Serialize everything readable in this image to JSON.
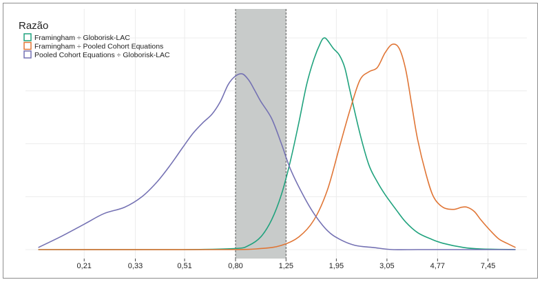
{
  "chart_data": {
    "type": "line",
    "title": "",
    "xlabel": "",
    "ylabel": "",
    "x_scale": "log",
    "x_ticks": [
      "0,21",
      "0,33",
      "0,51",
      "0,80",
      "1,25",
      "1,95",
      "3,05",
      "4,77",
      "7,45"
    ],
    "x_tick_values": [
      0.21,
      0.33,
      0.51,
      0.8,
      1.25,
      1.95,
      3.05,
      4.77,
      7.45
    ],
    "xlim": [
      0.125,
      10.5
    ],
    "ylim": [
      0,
      1.05
    ],
    "y_tick_labels_shown": false,
    "grid": true,
    "shaded_region": {
      "x_start": 0.8,
      "x_end": 1.25,
      "color": "#c8cbca"
    },
    "legend": {
      "title": "Razão",
      "position": "top-left"
    },
    "series": [
      {
        "name": "Framingham ÷ Globorisk-LAC",
        "color": "#1fa27d",
        "x": [
          0.14,
          0.5,
          0.8,
          0.9,
          1.0,
          1.1,
          1.2,
          1.3,
          1.4,
          1.5,
          1.6,
          1.7,
          1.75,
          1.8,
          1.9,
          2.0,
          2.1,
          2.2,
          2.4,
          2.6,
          2.8,
          3.0,
          3.3,
          3.6,
          4.0,
          4.5,
          5.0,
          6.0,
          7.0,
          9.5
        ],
        "y": [
          0.0,
          0.0,
          0.005,
          0.02,
          0.06,
          0.14,
          0.26,
          0.42,
          0.6,
          0.78,
          0.9,
          0.98,
          1.0,
          0.99,
          0.95,
          0.92,
          0.86,
          0.75,
          0.55,
          0.4,
          0.32,
          0.26,
          0.19,
          0.13,
          0.08,
          0.05,
          0.03,
          0.01,
          0.003,
          0.0
        ]
      },
      {
        "name": "Framingham ÷ Pooled Cohort Equations",
        "color": "#e07535",
        "x": [
          0.14,
          0.7,
          1.0,
          1.2,
          1.4,
          1.6,
          1.8,
          2.0,
          2.2,
          2.4,
          2.6,
          2.8,
          3.0,
          3.2,
          3.4,
          3.6,
          3.8,
          4.0,
          4.3,
          4.6,
          5.0,
          5.5,
          5.9,
          6.2,
          6.6,
          7.0,
          7.6,
          8.2,
          8.8,
          9.5
        ],
        "y": [
          0.0,
          0.0,
          0.005,
          0.02,
          0.06,
          0.14,
          0.28,
          0.48,
          0.66,
          0.8,
          0.84,
          0.86,
          0.93,
          0.97,
          0.95,
          0.85,
          0.68,
          0.52,
          0.36,
          0.25,
          0.2,
          0.19,
          0.2,
          0.2,
          0.18,
          0.14,
          0.09,
          0.05,
          0.03,
          0.01
        ]
      },
      {
        "name": "Pooled Cohort Equations ÷ Globorisk-LAC",
        "color": "#7471b3",
        "x": [
          0.14,
          0.17,
          0.21,
          0.25,
          0.3,
          0.35,
          0.4,
          0.45,
          0.5,
          0.55,
          0.6,
          0.65,
          0.7,
          0.75,
          0.8,
          0.85,
          0.9,
          0.95,
          1.0,
          1.1,
          1.2,
          1.3,
          1.45,
          1.6,
          1.8,
          2.0,
          2.3,
          2.7,
          3.2,
          4.0,
          5.5,
          9.5
        ],
        "y": [
          0.01,
          0.06,
          0.12,
          0.17,
          0.2,
          0.25,
          0.32,
          0.4,
          0.48,
          0.55,
          0.6,
          0.64,
          0.7,
          0.78,
          0.82,
          0.83,
          0.8,
          0.75,
          0.7,
          0.62,
          0.5,
          0.38,
          0.26,
          0.17,
          0.09,
          0.05,
          0.02,
          0.01,
          0.0,
          0.0,
          0.0,
          0.0
        ]
      }
    ]
  }
}
